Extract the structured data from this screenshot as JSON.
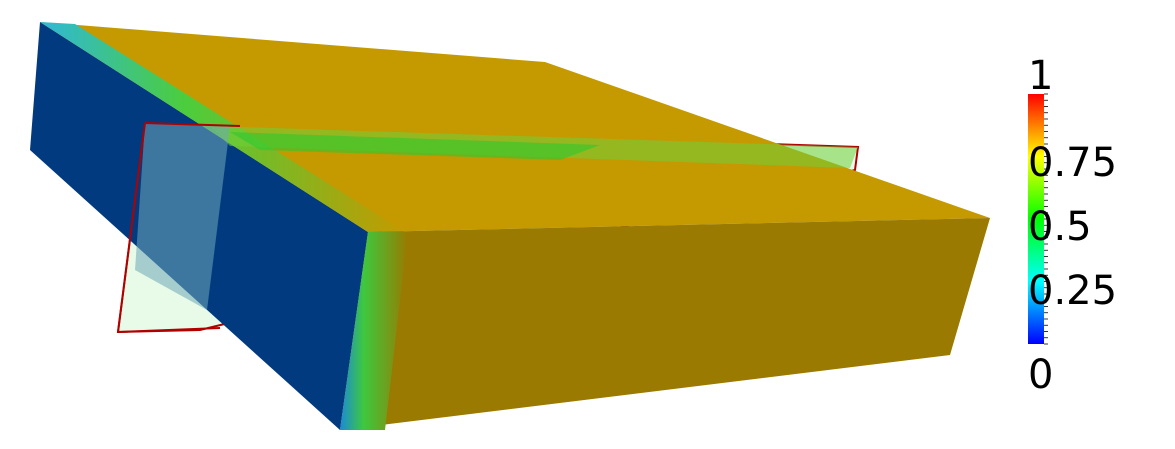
{
  "colorbar": {
    "ticks": [
      "0",
      "0.25",
      "0.5",
      "0.75",
      "1"
    ],
    "range": [
      0,
      1
    ],
    "colormap": [
      "#0000ff",
      "#00ffff",
      "#00ff00",
      "#ffff00",
      "#ff0000"
    ]
  },
  "colors": {
    "box_top": "#c49a00",
    "box_front": "#9a7a00",
    "box_left": "#023a80",
    "plane_fill": "#e8fbe8",
    "plane_edge": "#b00000",
    "transition_green": "#3ec83e",
    "transition_cyan": "#2fb8d8"
  }
}
